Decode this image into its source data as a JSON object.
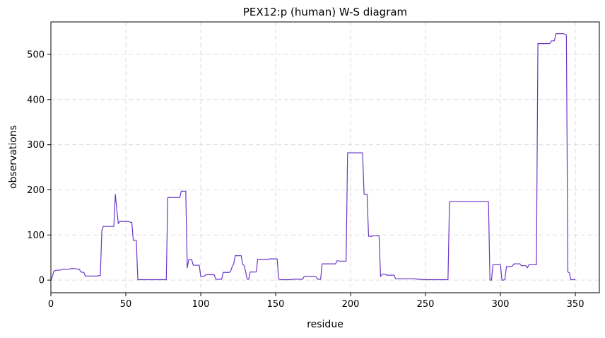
{
  "chart_data": {
    "type": "line",
    "title": "PEX12:p (human) W-S diagram",
    "xlabel": "residue",
    "ylabel": "observations",
    "xlim": [
      0,
      366
    ],
    "ylim": [
      -28,
      572
    ],
    "xticks": [
      0,
      50,
      100,
      150,
      200,
      250,
      300,
      350
    ],
    "yticks": [
      0,
      100,
      200,
      300,
      400,
      500
    ],
    "grid": true,
    "grid_style": "dashed",
    "line_color": "#6a36c8",
    "series": [
      {
        "name": "",
        "points": [
          [
            0,
            0
          ],
          [
            1,
            8
          ],
          [
            2,
            20
          ],
          [
            4,
            22
          ],
          [
            6,
            22
          ],
          [
            8,
            24
          ],
          [
            12,
            24
          ],
          [
            14,
            26
          ],
          [
            17,
            25
          ],
          [
            18,
            24
          ],
          [
            19,
            24
          ],
          [
            20,
            18
          ],
          [
            22,
            17
          ],
          [
            23,
            9
          ],
          [
            24,
            9
          ],
          [
            31,
            9
          ],
          [
            32,
            10
          ],
          [
            33,
            10
          ],
          [
            34,
            110
          ],
          [
            35,
            119
          ],
          [
            42,
            119
          ],
          [
            43,
            190
          ],
          [
            44,
            155
          ],
          [
            45,
            125
          ],
          [
            46,
            130
          ],
          [
            52,
            130
          ],
          [
            53,
            128
          ],
          [
            54,
            128
          ],
          [
            55,
            88
          ],
          [
            57,
            88
          ],
          [
            58,
            1
          ],
          [
            77,
            1
          ],
          [
            78,
            183
          ],
          [
            86,
            183
          ],
          [
            87,
            197
          ],
          [
            90,
            197
          ],
          [
            91,
            27
          ],
          [
            92,
            45
          ],
          [
            94,
            45
          ],
          [
            95,
            33
          ],
          [
            99,
            33
          ],
          [
            100,
            8
          ],
          [
            102,
            8
          ],
          [
            103,
            11
          ],
          [
            104,
            12
          ],
          [
            109,
            12
          ],
          [
            110,
            2
          ],
          [
            114,
            2
          ],
          [
            115,
            17
          ],
          [
            119,
            17
          ],
          [
            120,
            20
          ],
          [
            121,
            30
          ],
          [
            122,
            36
          ],
          [
            123,
            54
          ],
          [
            127,
            54
          ],
          [
            128,
            35
          ],
          [
            129,
            32
          ],
          [
            130,
            18
          ],
          [
            131,
            2
          ],
          [
            132,
            2
          ],
          [
            133,
            18
          ],
          [
            137,
            18
          ],
          [
            138,
            46
          ],
          [
            145,
            46
          ],
          [
            146,
            47
          ],
          [
            151,
            47
          ],
          [
            152,
            3
          ],
          [
            153,
            1
          ],
          [
            160,
            1
          ],
          [
            161,
            2
          ],
          [
            168,
            2
          ],
          [
            169,
            8
          ],
          [
            176,
            8
          ],
          [
            177,
            7
          ],
          [
            178,
            2
          ],
          [
            180,
            2
          ],
          [
            181,
            36
          ],
          [
            190,
            36
          ],
          [
            191,
            43
          ],
          [
            193,
            42
          ],
          [
            197,
            42
          ],
          [
            198,
            282
          ],
          [
            208,
            282
          ],
          [
            209,
            190
          ],
          [
            211,
            190
          ],
          [
            212,
            97
          ],
          [
            214,
            97
          ],
          [
            215,
            98
          ],
          [
            219,
            98
          ],
          [
            220,
            8
          ],
          [
            221,
            13
          ],
          [
            223,
            13
          ],
          [
            224,
            11
          ],
          [
            229,
            11
          ],
          [
            230,
            3
          ],
          [
            243,
            3
          ],
          [
            244,
            2
          ],
          [
            247,
            2
          ],
          [
            248,
            1
          ],
          [
            265,
            1
          ],
          [
            266,
            174
          ],
          [
            292,
            174
          ],
          [
            293,
            0
          ],
          [
            294,
            0
          ],
          [
            295,
            34
          ],
          [
            300,
            34
          ],
          [
            301,
            0
          ],
          [
            302,
            0
          ],
          [
            303,
            2
          ],
          [
            304,
            30
          ],
          [
            307,
            30
          ],
          [
            308,
            31
          ],
          [
            309,
            36
          ],
          [
            313,
            36
          ],
          [
            314,
            32
          ],
          [
            317,
            32
          ],
          [
            318,
            27
          ],
          [
            319,
            34
          ],
          [
            324,
            34
          ],
          [
            325,
            524
          ],
          [
            333,
            524
          ],
          [
            334,
            530
          ],
          [
            336,
            530
          ],
          [
            337,
            546
          ],
          [
            342,
            546
          ],
          [
            344,
            543
          ],
          [
            345,
            18
          ],
          [
            346,
            16
          ],
          [
            347,
            1
          ],
          [
            350,
            1
          ]
        ]
      }
    ]
  }
}
